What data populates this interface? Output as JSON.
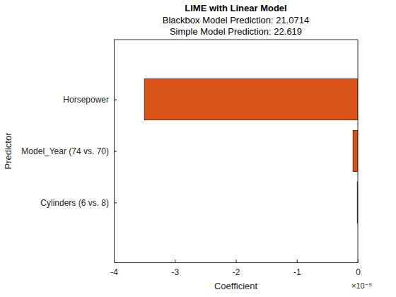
{
  "chart_data": {
    "type": "bar",
    "orientation": "horizontal",
    "title": "LIME with Linear Model",
    "subtitle": [
      "Blackbox Model Prediction: 21.0714",
      "Simple Model Prediction: 22.619"
    ],
    "x_label": "Coefficient",
    "y_label": "Predictor",
    "annotations": [
      "×10⁻⁵"
    ],
    "categories": [
      "Horsepower",
      "Model_Year (74 vs. 70)",
      "Cylinders (6 vs. 8)"
    ],
    "values": [
      -3.5,
      -0.08,
      -0.01
    ],
    "color": "#d95319",
    "xlim": [
      -4,
      0
    ],
    "xticks": [
      -4,
      -3,
      -2,
      -1,
      0
    ],
    "grid": false
  }
}
